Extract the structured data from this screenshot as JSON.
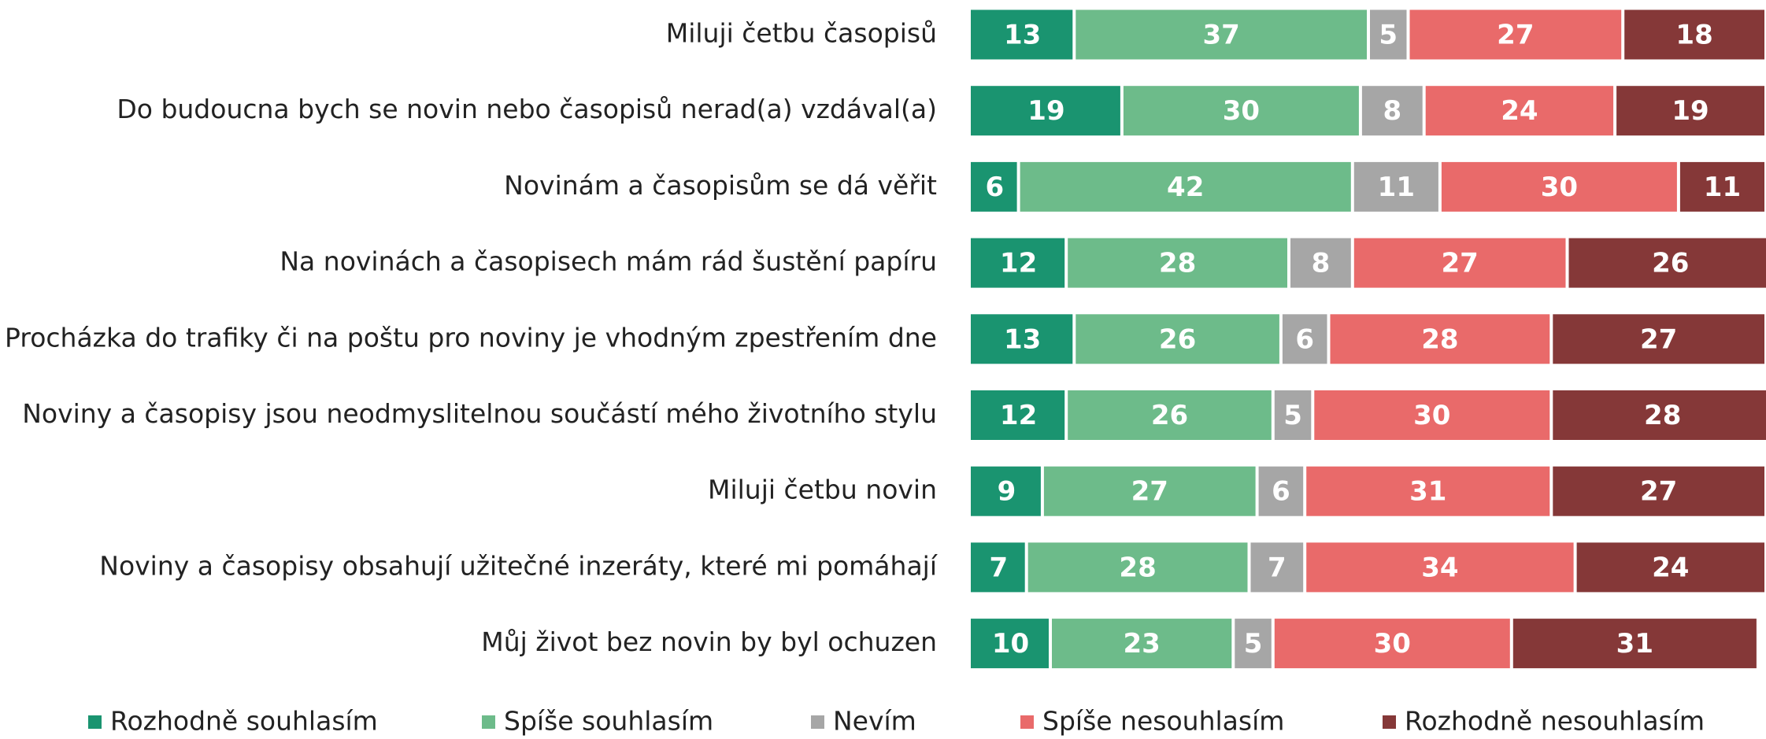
{
  "chart_data": {
    "type": "stacked_bar_horizontal",
    "categories": [
      "Miluji četbu časopisů",
      "Do budoucna bych se novin nebo časopisů nerad(a) vzdával(a)",
      "Novinám a časopisům se dá věřit",
      "Na novinách a časopisech mám rád šustění papíru",
      "Procházka do trafiky či na poštu pro noviny je vhodným zpestřením dne",
      "Noviny a časopisy jsou neodmyslitelnou součástí mého životního stylu",
      "Miluji četbu novin",
      "Noviny a časopisy obsahují užitečné inzeráty, které mi pomáhají",
      "Můj život bez novin by byl ochuzen"
    ],
    "series": [
      {
        "name": "Rozhodně souhlasím",
        "color": "#1a9470",
        "values": [
          13,
          19,
          6,
          12,
          13,
          12,
          9,
          7,
          10
        ]
      },
      {
        "name": "Spíše souhlasím",
        "color": "#6dbb8a",
        "values": [
          37,
          30,
          42,
          28,
          26,
          26,
          27,
          28,
          23
        ]
      },
      {
        "name": "Nevím",
        "color": "#a6a6a6",
        "values": [
          5,
          8,
          11,
          8,
          6,
          5,
          6,
          7,
          5
        ]
      },
      {
        "name": "Spíše nesouhlasím",
        "color": "#e96a6a",
        "values": [
          27,
          24,
          30,
          27,
          28,
          30,
          31,
          34,
          30
        ]
      },
      {
        "name": "Rozhodně nesouhlasím",
        "color": "#853838",
        "values": [
          18,
          19,
          11,
          26,
          27,
          28,
          27,
          24,
          31
        ]
      }
    ],
    "xlim": [
      0,
      100
    ],
    "legend": "bottom"
  }
}
